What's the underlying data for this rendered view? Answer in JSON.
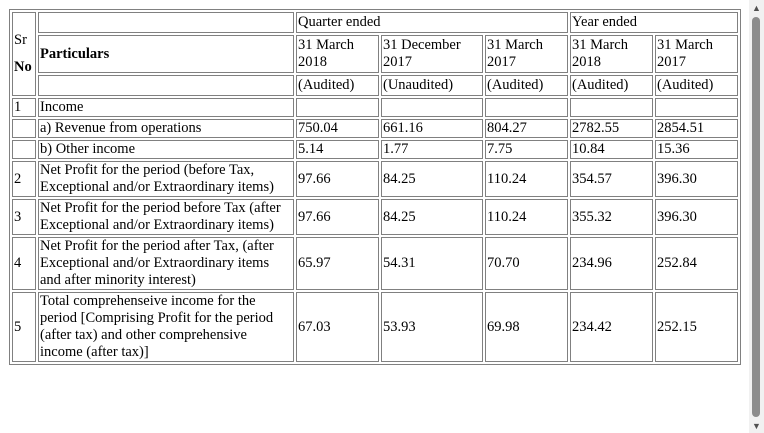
{
  "header": {
    "sr": "Sr",
    "no": "No",
    "particulars": "Particulars",
    "quarter_ended": "Quarter ended",
    "year_ended": "Year ended",
    "dates": [
      "31 March 2018",
      "31 December 2017",
      "31 March 2017",
      "31 March 2018",
      "31 March 2017"
    ],
    "status": [
      "(Audited)",
      "(Unaudited)",
      "(Audited)",
      "(Audited)",
      "(Audited)"
    ]
  },
  "rows": [
    {
      "sr": "1",
      "label": "Income",
      "values": [
        "",
        "",
        "",
        "",
        ""
      ]
    },
    {
      "sr": "",
      "label": "a) Revenue from operations",
      "values": [
        "750.04",
        "661.16",
        "804.27",
        "2782.55",
        "2854.51"
      ]
    },
    {
      "sr": "",
      "label": "b) Other income",
      "values": [
        "5.14",
        "1.77",
        "7.75",
        "10.84",
        "15.36"
      ]
    },
    {
      "sr": "2",
      "label": "Net Profit for the period (before Tax, Exceptional and/or Extraordinary items)",
      "values": [
        "97.66",
        "84.25",
        "110.24",
        "354.57",
        "396.30"
      ]
    },
    {
      "sr": "3",
      "label": "Net Profit for the period before Tax (after Exceptional and/or Extraordinary items)",
      "values": [
        "97.66",
        "84.25",
        "110.24",
        "355.32",
        "396.30"
      ]
    },
    {
      "sr": "4",
      "label": "Net Profit for the period after Tax, (after Exceptional and/or Extraordinary items and after minority interest)",
      "values": [
        "65.97",
        "54.31",
        "70.70",
        "234.96",
        "252.84"
      ]
    },
    {
      "sr": "5",
      "label": "Total comprehenseive income for the period [Comprising Profit for the period (after tax) and other comprehensive income (after tax)]",
      "values": [
        "67.03",
        "53.93",
        "69.98",
        "234.42",
        "252.15"
      ]
    }
  ]
}
